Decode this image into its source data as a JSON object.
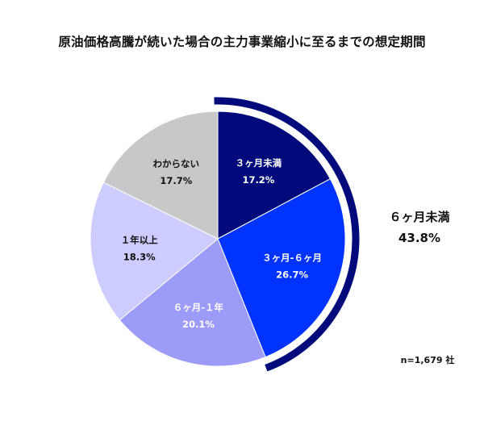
{
  "chart_data": {
    "type": "pie",
    "title": "原油価格高騰が続いた場合の主力事業縮小に至るまでの想定期間",
    "categories": [
      "３ヶ月未満",
      "３ヶ月-６ヶ月",
      "６ヶ月-１年",
      "１年以上",
      "わからない"
    ],
    "values": [
      17.2,
      26.7,
      20.1,
      18.3,
      17.7
    ],
    "value_labels": [
      "17.2%",
      "26.7%",
      "20.1%",
      "18.3%",
      "17.7%"
    ],
    "colors": [
      "#000a7a",
      "#0033ff",
      "#9c9cf8",
      "#ccccff",
      "#c8c8c8"
    ],
    "label_colors": [
      "#ffffff",
      "#ffffff",
      "#ffffff",
      "#111111",
      "#111111"
    ],
    "group": {
      "label": "６ヶ月未満",
      "value_label": "43.8%",
      "value": 43.8,
      "members": [
        "３ヶ月未満",
        "３ヶ月-６ヶ月"
      ],
      "color": "#000a7a"
    },
    "sample_size": "n=1,679 社",
    "start_angle": "12 o'clock",
    "direction": "clockwise"
  }
}
